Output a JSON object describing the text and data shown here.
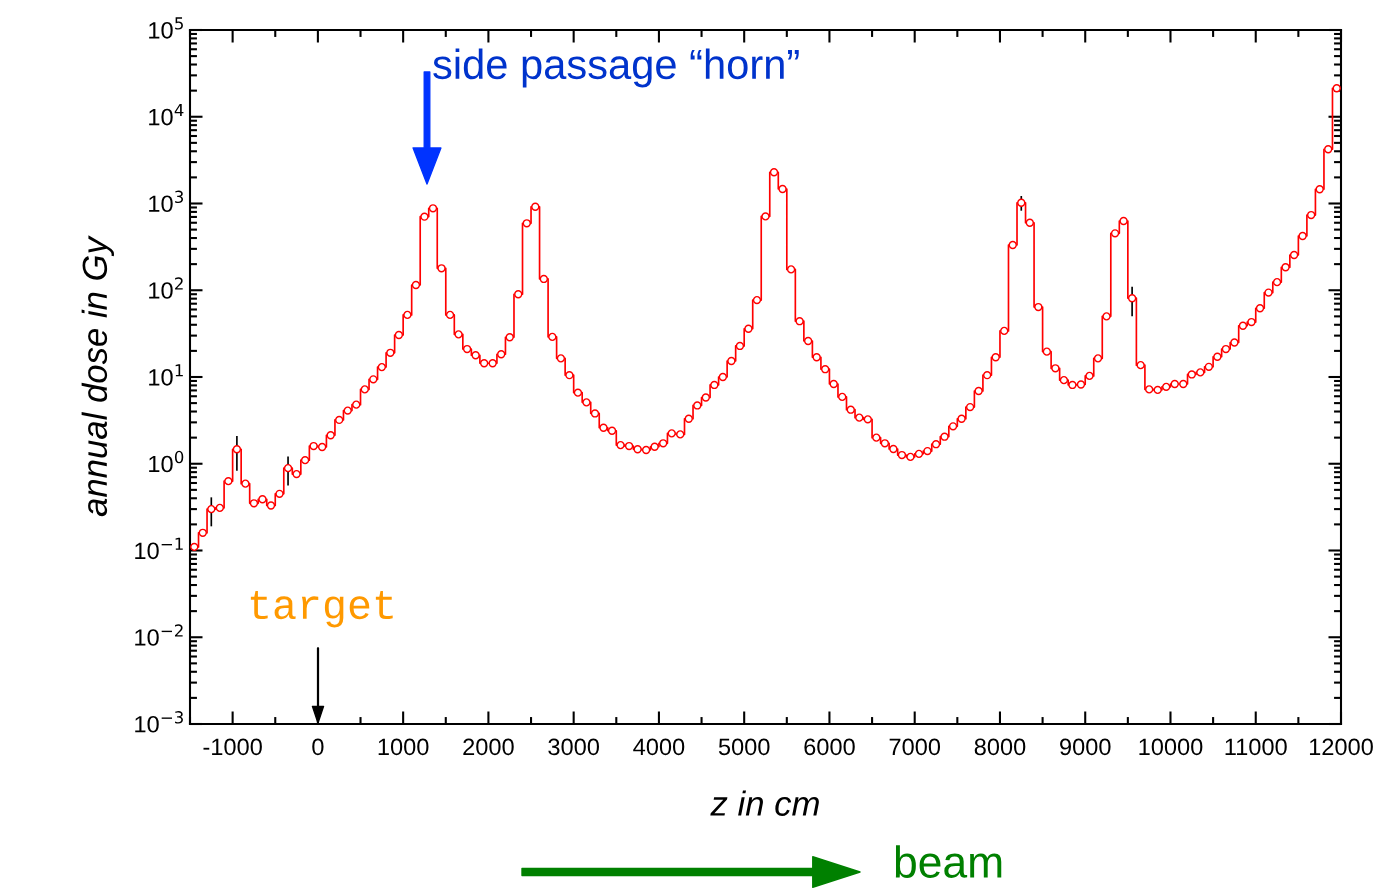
{
  "chart_data": {
    "type": "step",
    "xlabel": "z in cm",
    "ylabel": "annual dose in Gy",
    "x": [
      -1450,
      -1350,
      -1250,
      -1150,
      -1050,
      -950,
      -850,
      -750,
      -650,
      -550,
      -450,
      -350,
      -250,
      -150,
      -50,
      50,
      150,
      250,
      350,
      450,
      550,
      650,
      750,
      850,
      950,
      1050,
      1150,
      1250,
      1350,
      1450,
      1550,
      1650,
      1750,
      1850,
      1950,
      2050,
      2150,
      2250,
      2350,
      2450,
      2550,
      2650,
      2750,
      2850,
      2950,
      3050,
      3150,
      3250,
      3350,
      3450,
      3550,
      3650,
      3750,
      3850,
      3950,
      4050,
      4150,
      4250,
      4350,
      4450,
      4550,
      4650,
      4750,
      4850,
      4950,
      5050,
      5150,
      5250,
      5350,
      5450,
      5550,
      5650,
      5750,
      5850,
      5950,
      6050,
      6150,
      6250,
      6350,
      6450,
      6550,
      6650,
      6750,
      6850,
      6950,
      7050,
      7150,
      7250,
      7350,
      7450,
      7550,
      7650,
      7750,
      7850,
      7950,
      8050,
      8150,
      8250,
      8350,
      8450,
      8550,
      8650,
      8750,
      8850,
      8950,
      9050,
      9150,
      9250,
      9350,
      9450,
      9550,
      9650,
      9750,
      9850,
      9950,
      10050,
      10150,
      10250,
      10350,
      10450,
      10550,
      10650,
      10750,
      10850,
      10950,
      11050,
      11150,
      11250,
      11350,
      11450,
      11550,
      11650,
      11750,
      11850,
      11950
    ],
    "series": [
      {
        "color": "#ff0000",
        "values": [
          0.11,
          0.16,
          0.3,
          0.31,
          0.63,
          1.47,
          0.59,
          0.35,
          0.39,
          0.33,
          0.45,
          0.89,
          0.76,
          1.1,
          1.6,
          1.56,
          2.13,
          3.2,
          4.1,
          4.8,
          7.2,
          9.4,
          13,
          19,
          30.5,
          52,
          115,
          705,
          880,
          179,
          52,
          31,
          21,
          17.8,
          14.4,
          14.4,
          18.3,
          28.7,
          90,
          591,
          918,
          135,
          29,
          16.4,
          10.5,
          6.6,
          5.1,
          3.8,
          2.6,
          2.4,
          1.64,
          1.6,
          1.47,
          1.44,
          1.57,
          1.72,
          2.24,
          2.18,
          3.3,
          4.7,
          5.8,
          8.1,
          10,
          15.3,
          22.8,
          36,
          77,
          710,
          2290,
          1470,
          174,
          44,
          26,
          16.9,
          12.3,
          8.3,
          5.9,
          4.2,
          3.4,
          3.25,
          2.0,
          1.72,
          1.48,
          1.26,
          1.2,
          1.3,
          1.4,
          1.68,
          2.05,
          2.7,
          3.3,
          4.5,
          6.9,
          10.5,
          16.9,
          34,
          332,
          1020,
          600,
          64,
          19.6,
          12.6,
          9.2,
          8.1,
          8.2,
          10.3,
          16.4,
          50,
          453,
          628,
          81,
          13.7,
          7.2,
          7.1,
          7.7,
          8.3,
          8.3,
          10.7,
          11.3,
          13.1,
          17.1,
          21,
          25,
          39,
          43,
          62,
          94,
          124,
          184,
          255,
          422,
          736,
          1460,
          4220,
          21300
        ],
        "errors": [
          null,
          null,
          [
            0.19,
            0.41
          ],
          null,
          null,
          [
            0.83,
            2.09
          ],
          null,
          null,
          null,
          null,
          null,
          [
            0.56,
            1.21
          ],
          null,
          null,
          null,
          null,
          null,
          null,
          null,
          null,
          null,
          null,
          null,
          null,
          null,
          null,
          null,
          null,
          null,
          null,
          null,
          null,
          null,
          null,
          null,
          null,
          null,
          null,
          null,
          null,
          null,
          null,
          null,
          null,
          null,
          null,
          null,
          null,
          null,
          null,
          null,
          null,
          null,
          null,
          null,
          null,
          null,
          null,
          null,
          null,
          null,
          null,
          null,
          null,
          null,
          null,
          null,
          null,
          null,
          null,
          null,
          null,
          null,
          null,
          null,
          null,
          null,
          null,
          null,
          null,
          null,
          null,
          null,
          null,
          null,
          null,
          null,
          null,
          null,
          null,
          null,
          null,
          null,
          null,
          null,
          null,
          null,
          [
            826,
            1220
          ],
          null,
          null,
          null,
          null,
          null,
          null,
          null,
          null,
          null,
          null,
          null,
          null,
          [
            50,
            110
          ],
          null,
          null,
          null,
          null,
          null,
          null,
          null,
          null,
          null,
          null,
          null,
          null,
          null,
          null,
          null,
          null,
          null,
          null,
          null,
          null,
          null,
          null,
          null,
          null
        ]
      }
    ],
    "xlim": [
      -1500,
      12000
    ],
    "xticks": [
      -1000,
      0,
      1000,
      2000,
      3000,
      4000,
      5000,
      6000,
      7000,
      8000,
      9000,
      10000,
      11000,
      12000
    ],
    "log": true,
    "ylim": [
      0.001,
      100000
    ],
    "yticks": [
      {
        "value": 0.001,
        "label": "10$^{−3}$"
      },
      {
        "value": 0.01,
        "label": "10$^{−2}$"
      },
      {
        "value": 0.1,
        "label": "10$^{−1}$"
      },
      {
        "value": 1,
        "label": "10$^{0}$"
      },
      {
        "value": 10,
        "label": "10$^{1}$"
      },
      {
        "value": 100,
        "label": "10$^{2}$"
      },
      {
        "value": 1000,
        "label": "10$^{3}$"
      },
      {
        "value": 10000,
        "label": "10$^{4}$"
      },
      {
        "value": 100000,
        "label": "10$^{5}$"
      }
    ],
    "marker": "circle",
    "line_style": "solid",
    "grid": false,
    "annotations": [
      "side passage “horn”",
      "target",
      "beam"
    ]
  }
}
